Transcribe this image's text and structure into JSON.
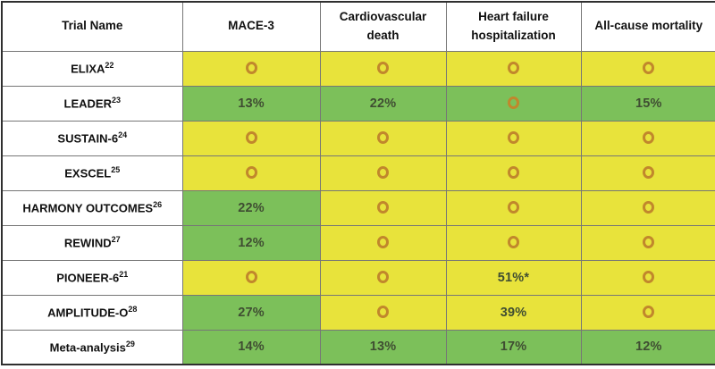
{
  "colors": {
    "yellow_cell": "#e8e33b",
    "green_cell": "#7cc05a",
    "ring_icon": "#c1872c",
    "percent_text": "#3f4d32",
    "header_text": "#111111",
    "grid_border": "#767676",
    "outer_border": "#2f2f2f"
  },
  "chart_data": {
    "type": "table",
    "columns": [
      "Trial Name",
      "MACE-3",
      "Cardiovascular death",
      "Heart failure hospitalization",
      "All-cause mortality"
    ],
    "rows": [
      {
        "trial": "ELIXA",
        "ref": "22",
        "values": [
          "O",
          "O",
          "O",
          "O"
        ],
        "colors": [
          "yellow",
          "yellow",
          "yellow",
          "yellow"
        ]
      },
      {
        "trial": "LEADER",
        "ref": "23",
        "values": [
          "13%",
          "22%",
          "O",
          "15%"
        ],
        "colors": [
          "green",
          "green",
          "green",
          "green"
        ]
      },
      {
        "trial": "SUSTAIN-6",
        "ref": "24",
        "values": [
          "O",
          "O",
          "O",
          "O"
        ],
        "colors": [
          "yellow",
          "yellow",
          "yellow",
          "yellow"
        ]
      },
      {
        "trial": "EXSCEL",
        "ref": "25",
        "values": [
          "O",
          "O",
          "O",
          "O"
        ],
        "colors": [
          "yellow",
          "yellow",
          "yellow",
          "yellow"
        ]
      },
      {
        "trial": "HARMONY OUTCOMES",
        "ref": "26",
        "values": [
          "22%",
          "O",
          "O",
          "O"
        ],
        "colors": [
          "green",
          "yellow",
          "yellow",
          "yellow"
        ]
      },
      {
        "trial": "REWIND",
        "ref": "27",
        "values": [
          "12%",
          "O",
          "O",
          "O"
        ],
        "colors": [
          "green",
          "yellow",
          "yellow",
          "yellow"
        ]
      },
      {
        "trial": "PIONEER-6",
        "ref": "21",
        "values": [
          "O",
          "O",
          "51%*",
          "O"
        ],
        "colors": [
          "yellow",
          "yellow",
          "yellow",
          "yellow"
        ]
      },
      {
        "trial": "AMPLITUDE-O",
        "ref": "28",
        "values": [
          "27%",
          "O",
          "39%",
          "O"
        ],
        "colors": [
          "green",
          "yellow",
          "yellow",
          "yellow"
        ]
      },
      {
        "trial": "Meta-analysis",
        "ref": "29",
        "values": [
          "14%",
          "13%",
          "17%",
          "12%"
        ],
        "colors": [
          "green",
          "green",
          "green",
          "green"
        ]
      }
    ],
    "no_effect_symbol": "O"
  }
}
